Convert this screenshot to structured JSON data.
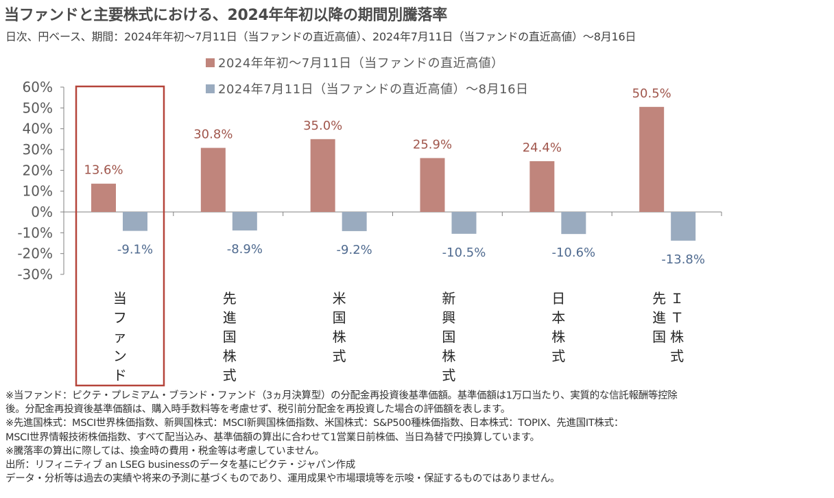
{
  "title": "当ファンドと主要株式における、2024年年初以降の期間別騰落率",
  "subtitle": "日次、円ベース、期間：2024年年初～7月11日（当ファンドの直近高値）、2024年7月11日（当ファンドの直近高値）～8月16日",
  "colors": {
    "series1": "#c0857c",
    "series2": "#9aabbf",
    "label1": "#a0564c",
    "label2": "#4f6a8f",
    "highlight": "#b5443a"
  },
  "chart_data": {
    "type": "bar",
    "categories": [
      "当ファンド",
      "先進国株式",
      "米国株式",
      "新興国株式",
      "日本株式",
      "先進国IT株式"
    ],
    "category_labels": [
      [
        "当ファンド"
      ],
      [
        "先進国株式"
      ],
      [
        "米国株式"
      ],
      [
        "新興国株式"
      ],
      [
        "日本株式"
      ],
      [
        "ＩＴ株式",
        "先進国"
      ]
    ],
    "series": [
      {
        "name": "2024年年初～7月11日（当ファンドの直近高値）",
        "values": [
          13.6,
          30.8,
          35.0,
          25.9,
          24.4,
          50.5
        ],
        "labels": [
          "13.6%",
          "30.8%",
          "35.0%",
          "25.9%",
          "24.4%",
          "50.5%"
        ]
      },
      {
        "name": "2024年7月11日（当ファンドの直近高値）～8月16日",
        "values": [
          -9.1,
          -8.9,
          -9.2,
          -10.5,
          -10.6,
          -13.8
        ],
        "labels": [
          "-9.1%",
          "-8.9%",
          "-9.2%",
          "-10.5%",
          "-10.6%",
          "-13.8%"
        ]
      }
    ],
    "ylim": [
      -30,
      60
    ],
    "yticks": [
      "60%",
      "50%",
      "40%",
      "30%",
      "20%",
      "10%",
      "0%",
      "-10%",
      "-20%",
      "-30%"
    ],
    "ytick_values": [
      60,
      50,
      40,
      30,
      20,
      10,
      0,
      -10,
      -20,
      -30
    ],
    "highlighted_category": "当ファンド",
    "legend": "top"
  },
  "notes": [
    "※当ファンド：ピクテ・プレミアム・ブランド・ファンド（3ヵ月決算型）の分配金再投資後基準価額。基準価額は1万口当たり、実質的な信託報酬等控除",
    "後。分配金再投資後基準価額は、購入時手数料等を考慮せず、税引前分配金を再投資した場合の評価額を表します。",
    "※先進国株式：MSCI世界株価指数、新興国株式：MSCI新興国株価指数、米国株式：S&P500種株価指数、日本株式：TOPIX、先進国IT株式：",
    "MSCI世界情報技術株価指数、すべて配当込み、基準価額の算出に合わせて1営業日前株価、当日為替で円換算しています。",
    "※騰落率の算出に際しては、換金時の費用・税金等は考慮していません。",
    " 出所：リフィニティブ an LSEG businessのデータを基にピクテ・ジャパン作成",
    "データ・分析等は過去の実績や将来の予測に基づくものであり、運用成果や市場環境等を示唆・保証するものではありません。"
  ]
}
